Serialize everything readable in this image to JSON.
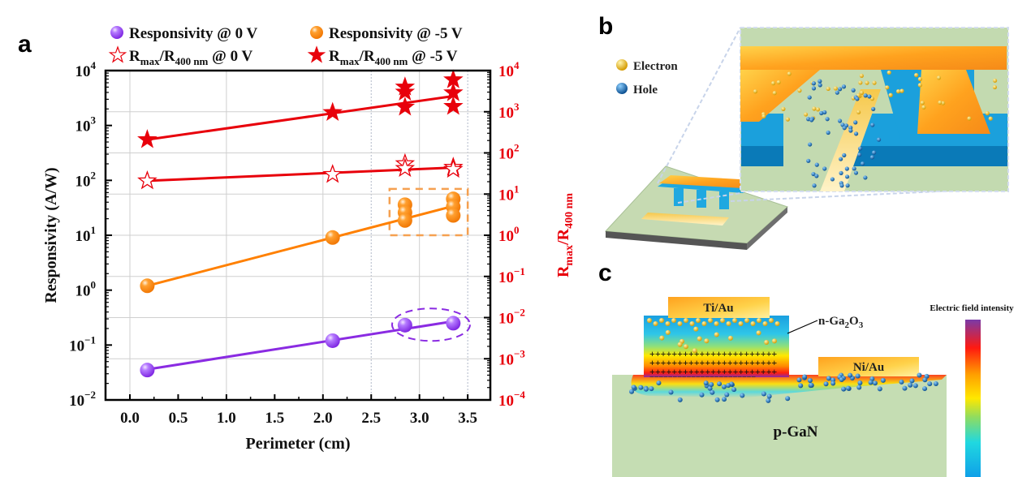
{
  "panels": {
    "a": "a",
    "b": "b",
    "c": "c"
  },
  "chart_data": {
    "type": "scatter",
    "title": "",
    "xlabel": "Perimeter (cm)",
    "ylabel": "Responsivity (A/W)",
    "ylabel_right": {
      "main": "R",
      "sub1": "max",
      "mid": "/R",
      "sub2": "400 nm"
    },
    "xlim": [
      -0.2,
      3.72
    ],
    "ylim": [
      0.01,
      10000
    ],
    "ylim_right": [
      0.0001,
      10000
    ],
    "yscale": "log",
    "grid": true,
    "legend_position": "top",
    "x_ticks": [
      "0.0",
      "0.5",
      "1.0",
      "1.5",
      "2.0",
      "2.5",
      "3.0",
      "3.5"
    ],
    "x_tick_values": [
      0.0,
      0.5,
      1.0,
      1.5,
      2.0,
      2.5,
      3.0,
      3.5
    ],
    "y_ticks_exponents": [
      "4",
      "3",
      "2",
      "1",
      "0",
      "−1",
      "−2"
    ],
    "y_right_ticks_exponents": [
      "4",
      "3",
      "2",
      "1",
      "0",
      "−1",
      "−2",
      "−3",
      "−4"
    ],
    "series": [
      {
        "name": "Responsivity @ 0 V",
        "legend": {
          "main": "Responsivity @ 0 V"
        },
        "axis": "left",
        "marker": "sphere",
        "color": "#8a2be2",
        "points": [
          [
            0.18,
            0.035
          ],
          [
            2.1,
            0.12
          ],
          [
            2.85,
            0.23
          ],
          [
            3.35,
            0.25
          ]
        ],
        "fit": [
          [
            0.18,
            0.036
          ],
          [
            3.35,
            0.27
          ]
        ]
      },
      {
        "name": "Responsivity @ -5 V",
        "legend": {
          "main": "Responsivity @ -5 V"
        },
        "axis": "left",
        "marker": "sphere",
        "color": "#ff8000",
        "points": [
          [
            0.18,
            1.2
          ],
          [
            2.1,
            9.1
          ],
          [
            2.85,
            36
          ],
          [
            2.85,
            26
          ],
          [
            2.85,
            18.6
          ],
          [
            3.35,
            46
          ],
          [
            3.35,
            33
          ],
          [
            3.35,
            23
          ]
        ],
        "fit": [
          [
            0.18,
            1.2
          ],
          [
            3.35,
            34
          ]
        ]
      },
      {
        "name": "Rmax/R400 nm @ 0 V",
        "legend": {
          "main": "R",
          "sub1": "max",
          "mid": "/R",
          "sub2": "400 nm",
          "tail": " @ 0 V"
        },
        "axis": "right",
        "marker": "star-open",
        "color": "#e8000b",
        "points": [
          [
            0.18,
            21
          ],
          [
            2.1,
            30
          ],
          [
            2.85,
            55
          ],
          [
            2.85,
            42
          ],
          [
            3.35,
            45
          ],
          [
            3.35,
            40
          ]
        ],
        "fit": [
          [
            0.18,
            21
          ],
          [
            3.35,
            44
          ]
        ]
      },
      {
        "name": "Rmax/R400 nm @ -5 V",
        "legend": {
          "main": "R",
          "sub1": "max",
          "mid": "/R",
          "sub2": "400 nm",
          "tail": " @ -5 V"
        },
        "axis": "right",
        "marker": "star-filled",
        "color": "#e8000b",
        "points": [
          [
            0.18,
            210
          ],
          [
            2.1,
            960
          ],
          [
            2.85,
            4000
          ],
          [
            2.85,
            3000
          ],
          [
            2.85,
            1300
          ],
          [
            3.35,
            6000
          ],
          [
            3.35,
            2900
          ],
          [
            3.35,
            1350
          ]
        ],
        "fit": [
          [
            0.18,
            210
          ],
          [
            3.35,
            2400
          ]
        ]
      }
    ],
    "annotations": [
      {
        "type": "dashed-rectangle",
        "color": "#f5a050",
        "around": "Responsivity @ -5 V points at x=2.85 and 3.35"
      },
      {
        "type": "dashed-ellipse",
        "color": "#8a2be2",
        "around": "Responsivity @ 0 V points at x=2.85 and 3.35"
      }
    ]
  },
  "panel_b": {
    "legend": [
      {
        "label": "Electron",
        "color": "#e8b400"
      },
      {
        "label": "Hole",
        "color": "#1a6fc0"
      }
    ]
  },
  "panel_c": {
    "top_contact": "Ti/Au",
    "side_contact": "Ni/Au",
    "layer_label": {
      "main": "n-Ga",
      "sub1": "2",
      "mid": "O",
      "sub2": "3"
    },
    "substrate": "p-GaN",
    "colorbar_title": "Electric field intensity",
    "plus_row": "+++++++++++++++++++++++",
    "minus_row": "−−−−−−−−−−−−−−−−−−−−−−−"
  }
}
